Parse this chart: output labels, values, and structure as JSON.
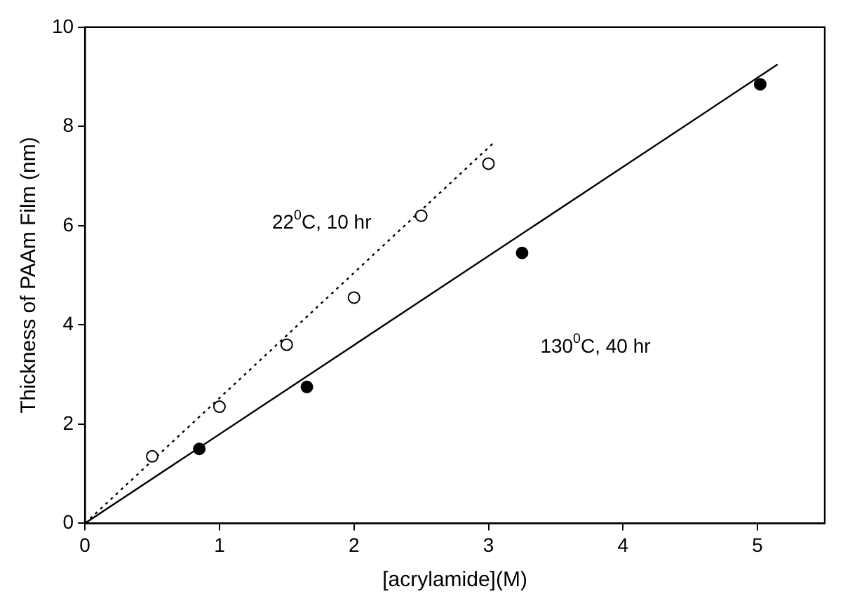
{
  "chart_data": {
    "type": "scatter",
    "xlabel": "[acrylamide](M)",
    "ylabel": "Thickness of PAAm Film (nm)",
    "xlim": [
      0,
      5.5
    ],
    "xticks": [
      0,
      1,
      2,
      3,
      4,
      5
    ],
    "ylim": [
      0,
      10
    ],
    "yticks": [
      0,
      2,
      4,
      6,
      8,
      10
    ],
    "grid": false,
    "legend": false,
    "series": [
      {
        "color": "#000000",
        "marker": "circle",
        "x": [
          0.5,
          1.0,
          1.5,
          2.0,
          2.5,
          3.0
        ],
        "values": [
          1.35,
          2.35,
          3.6,
          4.55,
          6.2,
          7.25
        ]
      },
      {
        "color": "#000000",
        "marker": "circle",
        "x": [
          0.85,
          1.65,
          3.25,
          5.02
        ],
        "values": [
          1.5,
          2.75,
          5.45,
          8.85
        ]
      },
      {
        "type": "line",
        "color": "#000000",
        "marker": "none",
        "line_style": "dotted",
        "x": [
          0,
          3.05
        ],
        "values": [
          0,
          7.7
        ]
      },
      {
        "type": "line",
        "color": "#000000",
        "marker": "none",
        "line_style": "solid",
        "x": [
          0,
          5.15
        ],
        "values": [
          0,
          9.25
        ]
      }
    ],
    "annotations": [
      "22$^{0}$C, 10 hr",
      "130$^{0}$C, 40 hr"
    ]
  }
}
